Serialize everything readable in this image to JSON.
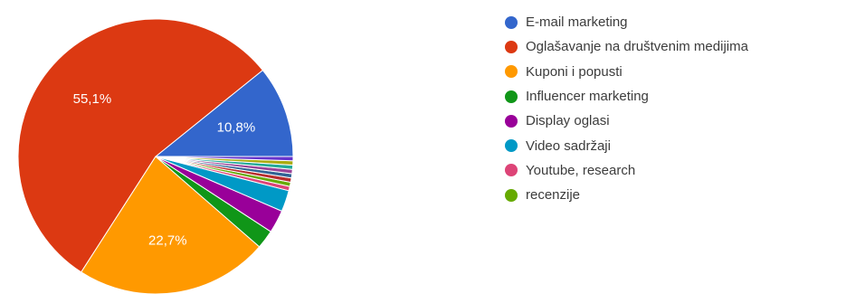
{
  "chart_data": {
    "type": "pie",
    "start_angle_deg": 0,
    "direction": "counterclockwise",
    "slices": [
      {
        "label": "E-mail marketing",
        "value": 10.8,
        "value_label": "10,8%",
        "color": "#3366cc"
      },
      {
        "label": "Oglašavanje na društvenim medijima",
        "value": 55.1,
        "value_label": "55,1%",
        "color": "#dc3912"
      },
      {
        "label": "Kuponi i popusti",
        "value": 22.7,
        "value_label": "22,7%",
        "color": "#ff9900"
      },
      {
        "label": "Influencer marketing",
        "value": 2.2,
        "color": "#109618"
      },
      {
        "label": "Display oglasi",
        "value": 2.7,
        "color": "#990099"
      },
      {
        "label": "Video sadržaji",
        "value": 2.5,
        "color": "#0099c6"
      },
      {
        "label": "Youtube, research",
        "value": 0.5,
        "color": "#dd4477"
      },
      {
        "label": "recenzije",
        "value": 0.5,
        "color": "#66aa00"
      },
      {
        "value": 0.5,
        "color": "#b82e2e"
      },
      {
        "value": 0.5,
        "color": "#316395"
      },
      {
        "value": 0.5,
        "color": "#994499"
      },
      {
        "value": 0.5,
        "color": "#22aa99"
      },
      {
        "value": 0.5,
        "color": "#aaaa11"
      },
      {
        "value": 0.5,
        "color": "#6633cc"
      }
    ],
    "legend_position": "right"
  }
}
